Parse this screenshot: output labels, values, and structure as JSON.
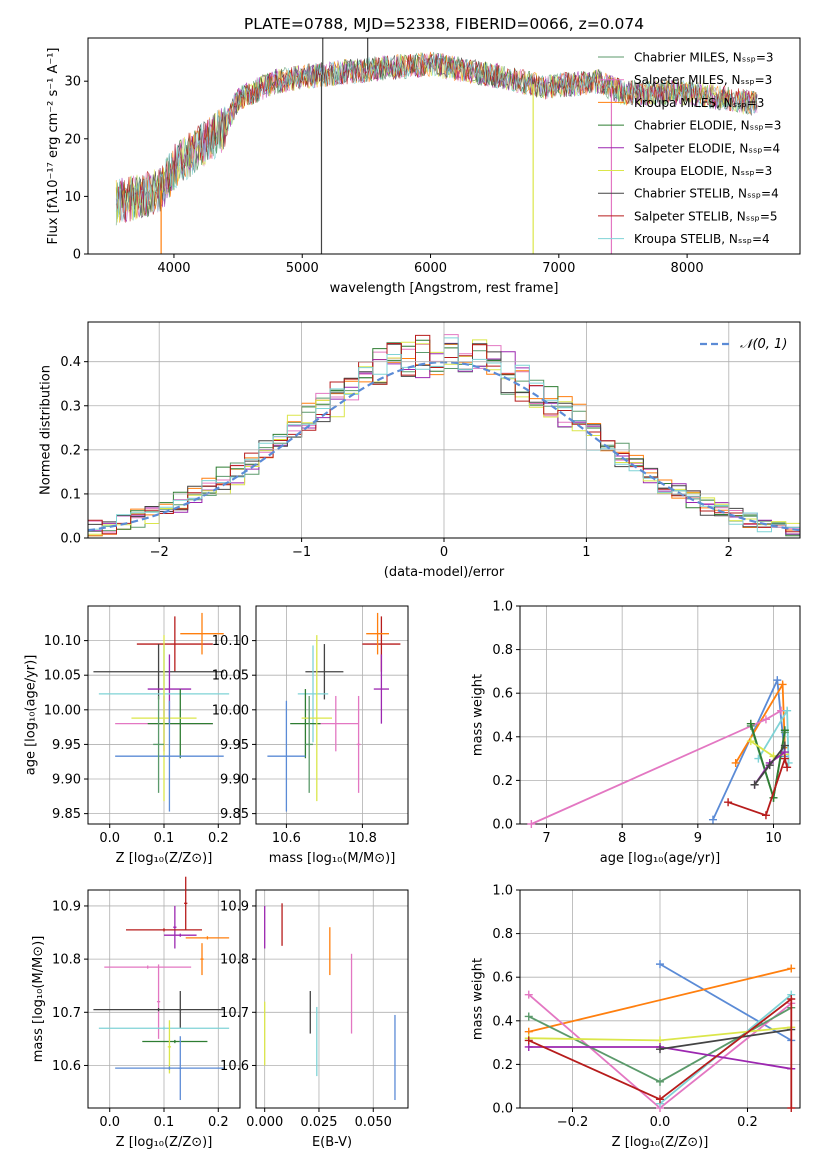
{
  "title": "PLATE=0788, MJD=52338, FIBERID=0066, z=0.074",
  "colors": {
    "chabrier_miles": "#5b9a6b",
    "salpeter_miles": "#e377c2",
    "kroupa_miles": "#ff7f0e",
    "chabrier_elodie": "#2e7d32",
    "salpeter_elodie": "#9c27b0",
    "kroupa_elodie": "#dbe64a",
    "chabrier_stelib": "#444444",
    "salpeter_stelib": "#b71c1c",
    "kroupa_stelib": "#7fd3d6",
    "normal": "#5b8bd6"
  },
  "chart_data": [
    {
      "id": "spectrum",
      "type": "line",
      "xlabel": "wavelength [Angstrom, rest frame]",
      "ylabel": "Flux [fλ10⁻¹⁷ erg cm⁻² s⁻¹ A⁻¹]",
      "xlim": [
        3330,
        8880
      ],
      "ylim": [
        0,
        37.5
      ],
      "xticks": [
        "4000",
        "5000",
        "6000",
        "7000",
        "8000"
      ],
      "yticks": [
        "0",
        "10",
        "20",
        "30"
      ],
      "grid": false,
      "legend_position": "top-right",
      "continuum_knots": [
        [
          3550,
          9
        ],
        [
          3900,
          11
        ],
        [
          4000,
          15
        ],
        [
          4400,
          22
        ],
        [
          4500,
          27
        ],
        [
          4800,
          30
        ],
        [
          5100,
          31
        ],
        [
          5500,
          32
        ],
        [
          6000,
          33
        ],
        [
          6500,
          31
        ],
        [
          6900,
          29
        ],
        [
          7300,
          30
        ],
        [
          7500,
          28
        ],
        [
          8000,
          28
        ],
        [
          8300,
          27
        ],
        [
          8550,
          26
        ]
      ],
      "series": [
        {
          "name": "Chabrier MILES, N_SSP=3",
          "color_key": "chabrier_miles"
        },
        {
          "name": "Salpeter MILES, N_SSP=3",
          "color_key": "salpeter_miles"
        },
        {
          "name": "Kroupa MILES, N_SSP=3",
          "color_key": "kroupa_miles"
        },
        {
          "name": "Chabrier ELODIE, N_SSP=3",
          "color_key": "chabrier_elodie"
        },
        {
          "name": "Salpeter ELODIE, N_SSP=4",
          "color_key": "salpeter_elodie"
        },
        {
          "name": "Kroupa ELODIE, N_SSP=3",
          "color_key": "kroupa_elodie"
        },
        {
          "name": "Chabrier STELIB, N_SSP=4",
          "color_key": "chabrier_stelib"
        },
        {
          "name": "Salpeter STELIB, N_SSP=5",
          "color_key": "salpeter_stelib"
        },
        {
          "name": "Kroupa STELIB, N_SSP=4",
          "color_key": "kroupa_stelib"
        }
      ],
      "spikes": [
        [
          3900,
          0,
          "kroupa_miles"
        ],
        [
          5150,
          0,
          "chabrier_stelib"
        ],
        [
          5160,
          37.5,
          "chabrier_stelib"
        ],
        [
          5510,
          37.5,
          "chabrier_stelib"
        ],
        [
          6800,
          0,
          "kroupa_elodie"
        ],
        [
          7410,
          0,
          "salpeter_miles"
        ]
      ]
    },
    {
      "id": "residuals",
      "type": "line",
      "xlabel": "(data-model)/error",
      "ylabel": "Normed distribution",
      "xlim": [
        -2.5,
        2.5
      ],
      "ylim": [
        0,
        0.49
      ],
      "xticks": [
        "−2",
        "−1",
        "0",
        "1",
        "2"
      ],
      "yticks": [
        "0.0",
        "0.1",
        "0.2",
        "0.3",
        "0.4"
      ],
      "grid": true,
      "legend_position": "top-right",
      "normal_label": "𝒩(0, 1)",
      "bin_width": 0.1
    },
    {
      "id": "age_vs_Z",
      "type": "scatter",
      "xlabel": "Z [log₁₀(Z/Z⊙)]",
      "ylabel": "age  [log₁₀(age/yr)]",
      "xlim": [
        -0.04,
        0.24
      ],
      "ylim": [
        9.835,
        10.15
      ],
      "xticks": [
        "0.0",
        "0.1",
        "0.2"
      ],
      "yticks": [
        "9.85",
        "9.90",
        "9.95",
        "10.00",
        "10.05",
        "10.10"
      ],
      "grid": true,
      "points": [
        {
          "x": 0.12,
          "y": 10.095,
          "xerr": 0.07,
          "yerr": 0.04,
          "color_key": "salpeter_stelib"
        },
        {
          "x": 0.17,
          "y": 10.11,
          "xerr": 0.04,
          "yerr": 0.03,
          "color_key": "kroupa_miles"
        },
        {
          "x": 0.09,
          "y": 10.055,
          "xerr": 0.12,
          "yerr": 0.04,
          "color_key": "chabrier_stelib"
        },
        {
          "x": 0.11,
          "y": 10.03,
          "xerr": 0.04,
          "yerr": 0.05,
          "color_key": "salpeter_elodie"
        },
        {
          "x": 0.1,
          "y": 10.023,
          "xerr": 0.12,
          "yerr": 0.07,
          "color_key": "kroupa_stelib"
        },
        {
          "x": 0.1,
          "y": 9.98,
          "xerr": 0.09,
          "yerr": 0.04,
          "color_key": "salpeter_miles"
        },
        {
          "x": 0.13,
          "y": 9.98,
          "xerr": 0.06,
          "yerr": 0.05,
          "color_key": "chabrier_elodie"
        },
        {
          "x": 0.1,
          "y": 9.988,
          "xerr": 0.06,
          "yerr": 0.12,
          "color_key": "kroupa_elodie"
        },
        {
          "x": 0.11,
          "y": 9.933,
          "xerr": 0.1,
          "yerr": 0.08,
          "color_key": "normal"
        },
        {
          "x": 0.09,
          "y": 9.95,
          "xerr": 0.01,
          "yerr": 0.07,
          "color_key": "chabrier_miles"
        }
      ]
    },
    {
      "id": "age_vs_mass",
      "type": "scatter",
      "xlabel": "mass [log₁₀(M/M⊙)]",
      "ylabel": "",
      "xlim": [
        10.52,
        10.92
      ],
      "ylim": [
        9.835,
        10.15
      ],
      "xticks": [
        "10.6",
        "10.8"
      ],
      "yticks": [
        "9.85",
        "9.90",
        "9.95",
        "10.00",
        "10.05",
        "10.10"
      ],
      "grid": true,
      "points": [
        {
          "x": 10.85,
          "y": 10.095,
          "xerr": 0.05,
          "yerr": 0.04,
          "color_key": "salpeter_stelib"
        },
        {
          "x": 10.84,
          "y": 10.11,
          "xerr": 0.03,
          "yerr": 0.03,
          "color_key": "kroupa_miles"
        },
        {
          "x": 10.7,
          "y": 10.055,
          "xerr": 0.05,
          "yerr": 0.04,
          "color_key": "chabrier_stelib"
        },
        {
          "x": 10.85,
          "y": 10.03,
          "xerr": 0.02,
          "yerr": 0.05,
          "color_key": "salpeter_elodie"
        },
        {
          "x": 10.67,
          "y": 10.023,
          "xerr": 0.04,
          "yerr": 0.07,
          "color_key": "kroupa_stelib"
        },
        {
          "x": 10.73,
          "y": 9.98,
          "xerr": 0.06,
          "yerr": 0.04,
          "color_key": "salpeter_miles"
        },
        {
          "x": 10.65,
          "y": 9.98,
          "xerr": 0.04,
          "yerr": 0.05,
          "color_key": "chabrier_elodie"
        },
        {
          "x": 10.68,
          "y": 9.988,
          "xerr": 0.04,
          "yerr": 0.12,
          "color_key": "kroupa_elodie"
        },
        {
          "x": 10.6,
          "y": 9.933,
          "xerr": 0.05,
          "yerr": 0.08,
          "color_key": "normal"
        },
        {
          "x": 10.66,
          "y": 9.95,
          "xerr": 0.01,
          "yerr": 0.07,
          "color_key": "chabrier_miles"
        },
        {
          "x": 10.79,
          "y": 9.95,
          "xerr": 0.005,
          "yerr": 0.07,
          "color_key": "salpeter_miles"
        }
      ]
    },
    {
      "id": "weight_vs_age",
      "type": "line",
      "xlabel": "age  [log₁₀(age/yr)]",
      "ylabel": "mass weight",
      "xlim": [
        6.65,
        10.35
      ],
      "ylim": [
        0,
        1
      ],
      "xticks": [
        "7",
        "8",
        "9",
        "10"
      ],
      "yticks": [
        "0.0",
        "0.2",
        "0.4",
        "0.6",
        "0.8",
        "1.0"
      ],
      "grid": true,
      "series": [
        {
          "color_key": "normal",
          "points": [
            [
              9.2,
              0.02
            ],
            [
              10.05,
              0.66
            ],
            [
              10.15,
              0.31
            ]
          ]
        },
        {
          "color_key": "kroupa_miles",
          "points": [
            [
              9.5,
              0.28
            ],
            [
              10.12,
              0.64
            ],
            [
              10.15,
              0.35
            ]
          ]
        },
        {
          "color_key": "salpeter_miles",
          "points": [
            [
              6.8,
              0.0
            ],
            [
              9.9,
              0.48
            ],
            [
              10.1,
              0.52
            ]
          ]
        },
        {
          "color_key": "kroupa_stelib",
          "points": [
            [
              9.8,
              0.3
            ],
            [
              10.18,
              0.52
            ],
            [
              10.2,
              0.28
            ]
          ]
        },
        {
          "color_key": "chabrier_miles",
          "points": [
            [
              9.7,
              0.45
            ],
            [
              10.0,
              0.12
            ],
            [
              10.15,
              0.42
            ]
          ]
        },
        {
          "color_key": "chabrier_elodie",
          "points": [
            [
              9.7,
              0.46
            ],
            [
              10.0,
              0.12
            ],
            [
              10.15,
              0.43
            ]
          ]
        },
        {
          "color_key": "kroupa_elodie",
          "points": [
            [
              9.7,
              0.38
            ],
            [
              10.0,
              0.31
            ],
            [
              10.15,
              0.32
            ]
          ]
        },
        {
          "color_key": "salpeter_elodie",
          "points": [
            [
              9.75,
              0.18
            ],
            [
              9.95,
              0.28
            ],
            [
              10.15,
              0.33
            ]
          ]
        },
        {
          "color_key": "chabrier_stelib",
          "points": [
            [
              9.75,
              0.18
            ],
            [
              9.95,
              0.27
            ],
            [
              10.15,
              0.36
            ]
          ]
        },
        {
          "color_key": "salpeter_stelib",
          "points": [
            [
              9.4,
              0.1
            ],
            [
              9.9,
              0.04
            ],
            [
              10.15,
              0.3
            ],
            [
              10.18,
              0.26
            ]
          ]
        }
      ]
    },
    {
      "id": "mass_vs_Z",
      "type": "scatter",
      "xlabel": "Z [log₁₀(Z/Z⊙)]",
      "ylabel": "mass [log₁₀(M/M⊙)]",
      "xlim": [
        -0.04,
        0.24
      ],
      "ylim": [
        10.52,
        10.93
      ],
      "xticks": [
        "0.0",
        "0.1",
        "0.2"
      ],
      "yticks": [
        "10.6",
        "10.7",
        "10.8",
        "10.9"
      ],
      "grid": true,
      "points": [
        {
          "x": 0.14,
          "y": 10.905,
          "xerr": 0.003,
          "yerr": 0.05,
          "color_key": "salpeter_stelib"
        },
        {
          "x": 0.12,
          "y": 10.86,
          "xerr": 0.003,
          "yerr": 0.04,
          "color_key": "salpeter_elodie"
        },
        {
          "x": 0.1,
          "y": 10.855,
          "xerr": 0.07,
          "yerr": 0.003,
          "color_key": "salpeter_stelib"
        },
        {
          "x": 0.13,
          "y": 10.845,
          "xerr": 0.03,
          "yerr": 0.003,
          "color_key": "salpeter_elodie"
        },
        {
          "x": 0.18,
          "y": 10.84,
          "xerr": 0.04,
          "yerr": 0.003,
          "color_key": "kroupa_miles"
        },
        {
          "x": 0.17,
          "y": 10.8,
          "xerr": 0.003,
          "yerr": 0.03,
          "color_key": "kroupa_miles"
        },
        {
          "x": 0.07,
          "y": 10.785,
          "xerr": 0.08,
          "yerr": 0.003,
          "color_key": "salpeter_miles"
        },
        {
          "x": 0.09,
          "y": 10.72,
          "xerr": 0.003,
          "yerr": 0.07,
          "color_key": "salpeter_miles"
        },
        {
          "x": 0.13,
          "y": 10.705,
          "xerr": 0.003,
          "yerr": 0.035,
          "color_key": "chabrier_stelib"
        },
        {
          "x": 0.09,
          "y": 10.705,
          "xerr": 0.12,
          "yerr": 0.003,
          "color_key": "chabrier_stelib"
        },
        {
          "x": 0.1,
          "y": 10.67,
          "xerr": 0.12,
          "yerr": 0.003,
          "color_key": "kroupa_stelib"
        },
        {
          "x": 0.12,
          "y": 10.645,
          "xerr": 0.06,
          "yerr": 0.003,
          "color_key": "chabrier_elodie"
        },
        {
          "x": 0.11,
          "y": 10.635,
          "xerr": 0.003,
          "yerr": 0.05,
          "color_key": "kroupa_elodie"
        },
        {
          "x": 0.11,
          "y": 10.595,
          "xerr": 0.1,
          "yerr": 0.003,
          "color_key": "normal"
        },
        {
          "x": 0.13,
          "y": 10.595,
          "xerr": 0.003,
          "yerr": 0.06,
          "color_key": "normal"
        }
      ]
    },
    {
      "id": "mass_vs_ebv",
      "type": "scatter",
      "xlabel": "E(B-V)",
      "ylabel": "",
      "xlim": [
        -0.004,
        0.066
      ],
      "ylim": [
        10.52,
        10.93
      ],
      "xticks": [
        "0.000",
        "0.025",
        "0.050"
      ],
      "yticks": [
        "10.6",
        "10.7",
        "10.8",
        "10.9"
      ],
      "grid": true,
      "points": [
        {
          "x": 0.0,
          "y": 10.86,
          "xerr": 0,
          "yerr": 0.04,
          "color_key": "salpeter_elodie"
        },
        {
          "x": 0.008,
          "y": 10.865,
          "xerr": 0,
          "yerr": 0.04,
          "color_key": "salpeter_stelib"
        },
        {
          "x": 0.03,
          "y": 10.815,
          "xerr": 0,
          "yerr": 0.045,
          "color_key": "kroupa_miles"
        },
        {
          "x": 0.04,
          "y": 10.735,
          "xerr": 0,
          "yerr": 0.075,
          "color_key": "salpeter_miles"
        },
        {
          "x": 0.021,
          "y": 10.7,
          "xerr": 0,
          "yerr": 0.04,
          "color_key": "chabrier_stelib"
        },
        {
          "x": 0.0,
          "y": 10.66,
          "xerr": 0,
          "yerr": 0.06,
          "color_key": "kroupa_elodie"
        },
        {
          "x": 0.024,
          "y": 10.645,
          "xerr": 0,
          "yerr": 0.065,
          "color_key": "kroupa_stelib"
        },
        {
          "x": 0.06,
          "y": 10.615,
          "xerr": 0,
          "yerr": 0.08,
          "color_key": "normal"
        }
      ]
    },
    {
      "id": "weight_vs_Z",
      "type": "line",
      "xlabel": "Z [log₁₀(Z/Z⊙)]",
      "ylabel": "mass weight",
      "xlim": [
        -0.32,
        0.32
      ],
      "ylim": [
        0,
        1
      ],
      "xticks": [
        "−0.2",
        "0.0",
        "0.2"
      ],
      "yticks": [
        "0.0",
        "0.2",
        "0.4",
        "0.6",
        "0.8",
        "1.0"
      ],
      "grid": true,
      "series": [
        {
          "color_key": "normal",
          "points": [
            [
              0.0,
              0.66
            ],
            [
              0.3,
              0.31
            ]
          ]
        },
        {
          "color_key": "kroupa_miles",
          "points": [
            [
              -0.3,
              0.35
            ],
            [
              0.3,
              0.64
            ]
          ]
        },
        {
          "color_key": "salpeter_miles",
          "points": [
            [
              -0.3,
              0.52
            ],
            [
              0.0,
              0.0
            ],
            [
              0.3,
              0.48
            ]
          ]
        },
        {
          "color_key": "kroupa_stelib",
          "points": [
            [
              0.0,
              0.02
            ],
            [
              0.3,
              0.52
            ]
          ]
        },
        {
          "color_key": "chabrier_miles",
          "points": [
            [
              -0.3,
              0.42
            ],
            [
              0.0,
              0.12
            ],
            [
              0.3,
              0.46
            ]
          ]
        },
        {
          "color_key": "kroupa_elodie",
          "points": [
            [
              -0.3,
              0.32
            ],
            [
              0.0,
              0.31
            ],
            [
              0.3,
              0.37
            ]
          ]
        },
        {
          "color_key": "salpeter_elodie",
          "points": [
            [
              -0.3,
              0.28
            ],
            [
              0.0,
              0.28
            ],
            [
              0.3,
              0.18
            ]
          ]
        },
        {
          "color_key": "chabrier_stelib",
          "points": [
            [
              0.0,
              0.27
            ],
            [
              0.3,
              0.36
            ]
          ]
        },
        {
          "color_key": "salpeter_stelib",
          "points": [
            [
              -0.3,
              0.31
            ],
            [
              0.0,
              0.04
            ],
            [
              0.3,
              0.5
            ],
            [
              0.3,
              0.0
            ]
          ]
        }
      ]
    }
  ]
}
